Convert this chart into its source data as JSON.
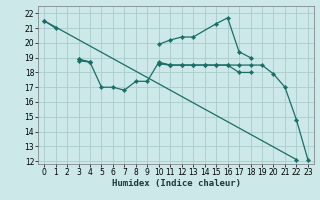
{
  "xlabel": "Humidex (Indice chaleur)",
  "bg_color": "#cce8e8",
  "grid_color": "#aacccc",
  "line_color": "#1a6e68",
  "xlim": [
    -0.5,
    23.5
  ],
  "ylim": [
    11.8,
    22.5
  ],
  "xticks": [
    0,
    1,
    2,
    3,
    4,
    5,
    6,
    7,
    8,
    9,
    10,
    11,
    12,
    13,
    14,
    15,
    16,
    17,
    18,
    19,
    20,
    21,
    22,
    23
  ],
  "yticks": [
    12,
    13,
    14,
    15,
    16,
    17,
    18,
    19,
    20,
    21,
    22
  ],
  "lines": [
    {
      "segments": [
        {
          "x": [
            0,
            1
          ],
          "y": [
            21.5,
            21.0
          ]
        },
        {
          "x": [
            10,
            11,
            12,
            13,
            15,
            16,
            17,
            18
          ],
          "y": [
            19.9,
            20.2,
            20.4,
            20.4,
            21.3,
            21.7,
            19.4,
            19.0
          ]
        }
      ]
    },
    {
      "segments": [
        {
          "x": [
            3,
            4,
            5,
            6,
            7,
            8,
            9,
            10,
            11
          ],
          "y": [
            18.8,
            18.7,
            17.0,
            17.0,
            16.8,
            17.4,
            17.4,
            18.7,
            18.5
          ]
        }
      ]
    },
    {
      "segments": [
        {
          "x": [
            3,
            4
          ],
          "y": [
            18.9,
            18.7
          ]
        },
        {
          "x": [
            10,
            11,
            12,
            13,
            14,
            15,
            16,
            17,
            18
          ],
          "y": [
            18.6,
            18.5,
            18.5,
            18.5,
            18.5,
            18.5,
            18.5,
            18.0,
            18.0
          ]
        }
      ]
    },
    {
      "segments": [
        {
          "x": [
            3,
            4
          ],
          "y": [
            18.9,
            18.7
          ]
        },
        {
          "x": [
            10,
            11,
            12,
            13,
            14,
            15,
            16,
            17,
            18,
            19,
            20,
            21,
            22,
            23
          ],
          "y": [
            18.6,
            18.5,
            18.5,
            18.5,
            18.5,
            18.5,
            18.5,
            18.5,
            18.5,
            18.5,
            17.9,
            17.0,
            14.8,
            12.1
          ]
        }
      ]
    },
    {
      "segments": [
        {
          "x": [
            0,
            22
          ],
          "y": [
            21.5,
            12.1
          ]
        }
      ]
    }
  ]
}
